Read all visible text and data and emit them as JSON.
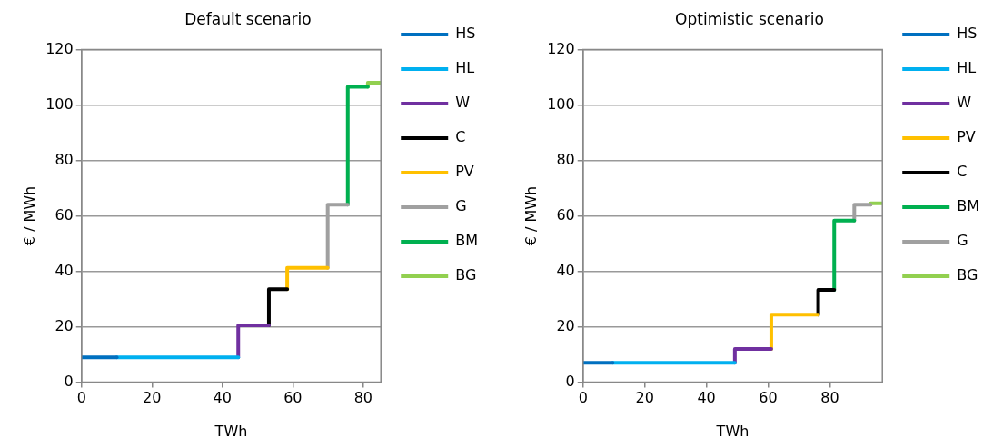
{
  "chart_data": [
    {
      "type": "line",
      "title": "Default scenario",
      "xlabel": "TWh",
      "ylabel": "€ / MWh",
      "xlim": [
        0,
        85
      ],
      "xticks": [
        0,
        20,
        40,
        60,
        80
      ],
      "ylim": [
        0,
        120
      ],
      "yticks": [
        0,
        20,
        40,
        60,
        80,
        100,
        120
      ],
      "grid": "y",
      "legend": "right",
      "series": [
        {
          "name": "HS",
          "color": "#0070c0",
          "x": [
            0,
            10
          ],
          "values": [
            9,
            9
          ]
        },
        {
          "name": "HL",
          "color": "#00b0f0",
          "x": [
            10,
            44.5
          ],
          "values": [
            9,
            9
          ]
        },
        {
          "name": "W",
          "color": "#7030a0",
          "x": [
            44.5,
            44.5,
            53.2
          ],
          "values": [
            9,
            20.5,
            20.5
          ]
        },
        {
          "name": "C",
          "color": "#000000",
          "x": [
            53.2,
            53.2,
            58.4
          ],
          "values": [
            20.5,
            33.5,
            33.5
          ]
        },
        {
          "name": "PV",
          "color": "#ffc000",
          "x": [
            58.4,
            58.4,
            69.9
          ],
          "values": [
            33.5,
            41.2,
            41.2
          ]
        },
        {
          "name": "G",
          "color": "#a0a0a0",
          "x": [
            69.9,
            69.9,
            75.6
          ],
          "values": [
            41.2,
            64,
            64
          ]
        },
        {
          "name": "BM",
          "color": "#00b050",
          "x": [
            75.6,
            75.6,
            81.3
          ],
          "values": [
            64,
            106.5,
            106.5
          ]
        },
        {
          "name": "BG",
          "color": "#92d050",
          "x": [
            81.3,
            81.3,
            85
          ],
          "values": [
            106.5,
            108,
            108
          ]
        }
      ]
    },
    {
      "type": "line",
      "title": "Optimistic scenario",
      "xlabel": "TWh",
      "ylabel": "€ / MWh",
      "xlim": [
        0,
        97
      ],
      "xticks": [
        0,
        20,
        40,
        60,
        80
      ],
      "ylim": [
        0,
        120
      ],
      "yticks": [
        0,
        20,
        40,
        60,
        80,
        100,
        120
      ],
      "grid": "y",
      "legend": "right",
      "series": [
        {
          "name": "HS",
          "color": "#0070c0",
          "x": [
            0,
            9.6
          ],
          "values": [
            7,
            7
          ]
        },
        {
          "name": "HL",
          "color": "#00b0f0",
          "x": [
            9.6,
            49.2
          ],
          "values": [
            7,
            7
          ]
        },
        {
          "name": "W",
          "color": "#7030a0",
          "x": [
            49.2,
            49.2,
            61
          ],
          "values": [
            7,
            12,
            12
          ]
        },
        {
          "name": "PV",
          "color": "#ffc000",
          "x": [
            61,
            61,
            76.2
          ],
          "values": [
            12,
            24.4,
            24.4
          ]
        },
        {
          "name": "C",
          "color": "#000000",
          "x": [
            76.2,
            76.2,
            81.4
          ],
          "values": [
            24.4,
            33.3,
            33.3
          ]
        },
        {
          "name": "BM",
          "color": "#00b050",
          "x": [
            81.4,
            81.4,
            87.9
          ],
          "values": [
            33.3,
            58.3,
            58.3
          ]
        },
        {
          "name": "G",
          "color": "#a0a0a0",
          "x": [
            87.9,
            87.9,
            93.2
          ],
          "values": [
            58.3,
            64,
            64
          ]
        },
        {
          "name": "BG",
          "color": "#92d050",
          "x": [
            93.2,
            93.2,
            97
          ],
          "values": [
            64,
            64.5,
            64.5
          ]
        }
      ]
    }
  ]
}
